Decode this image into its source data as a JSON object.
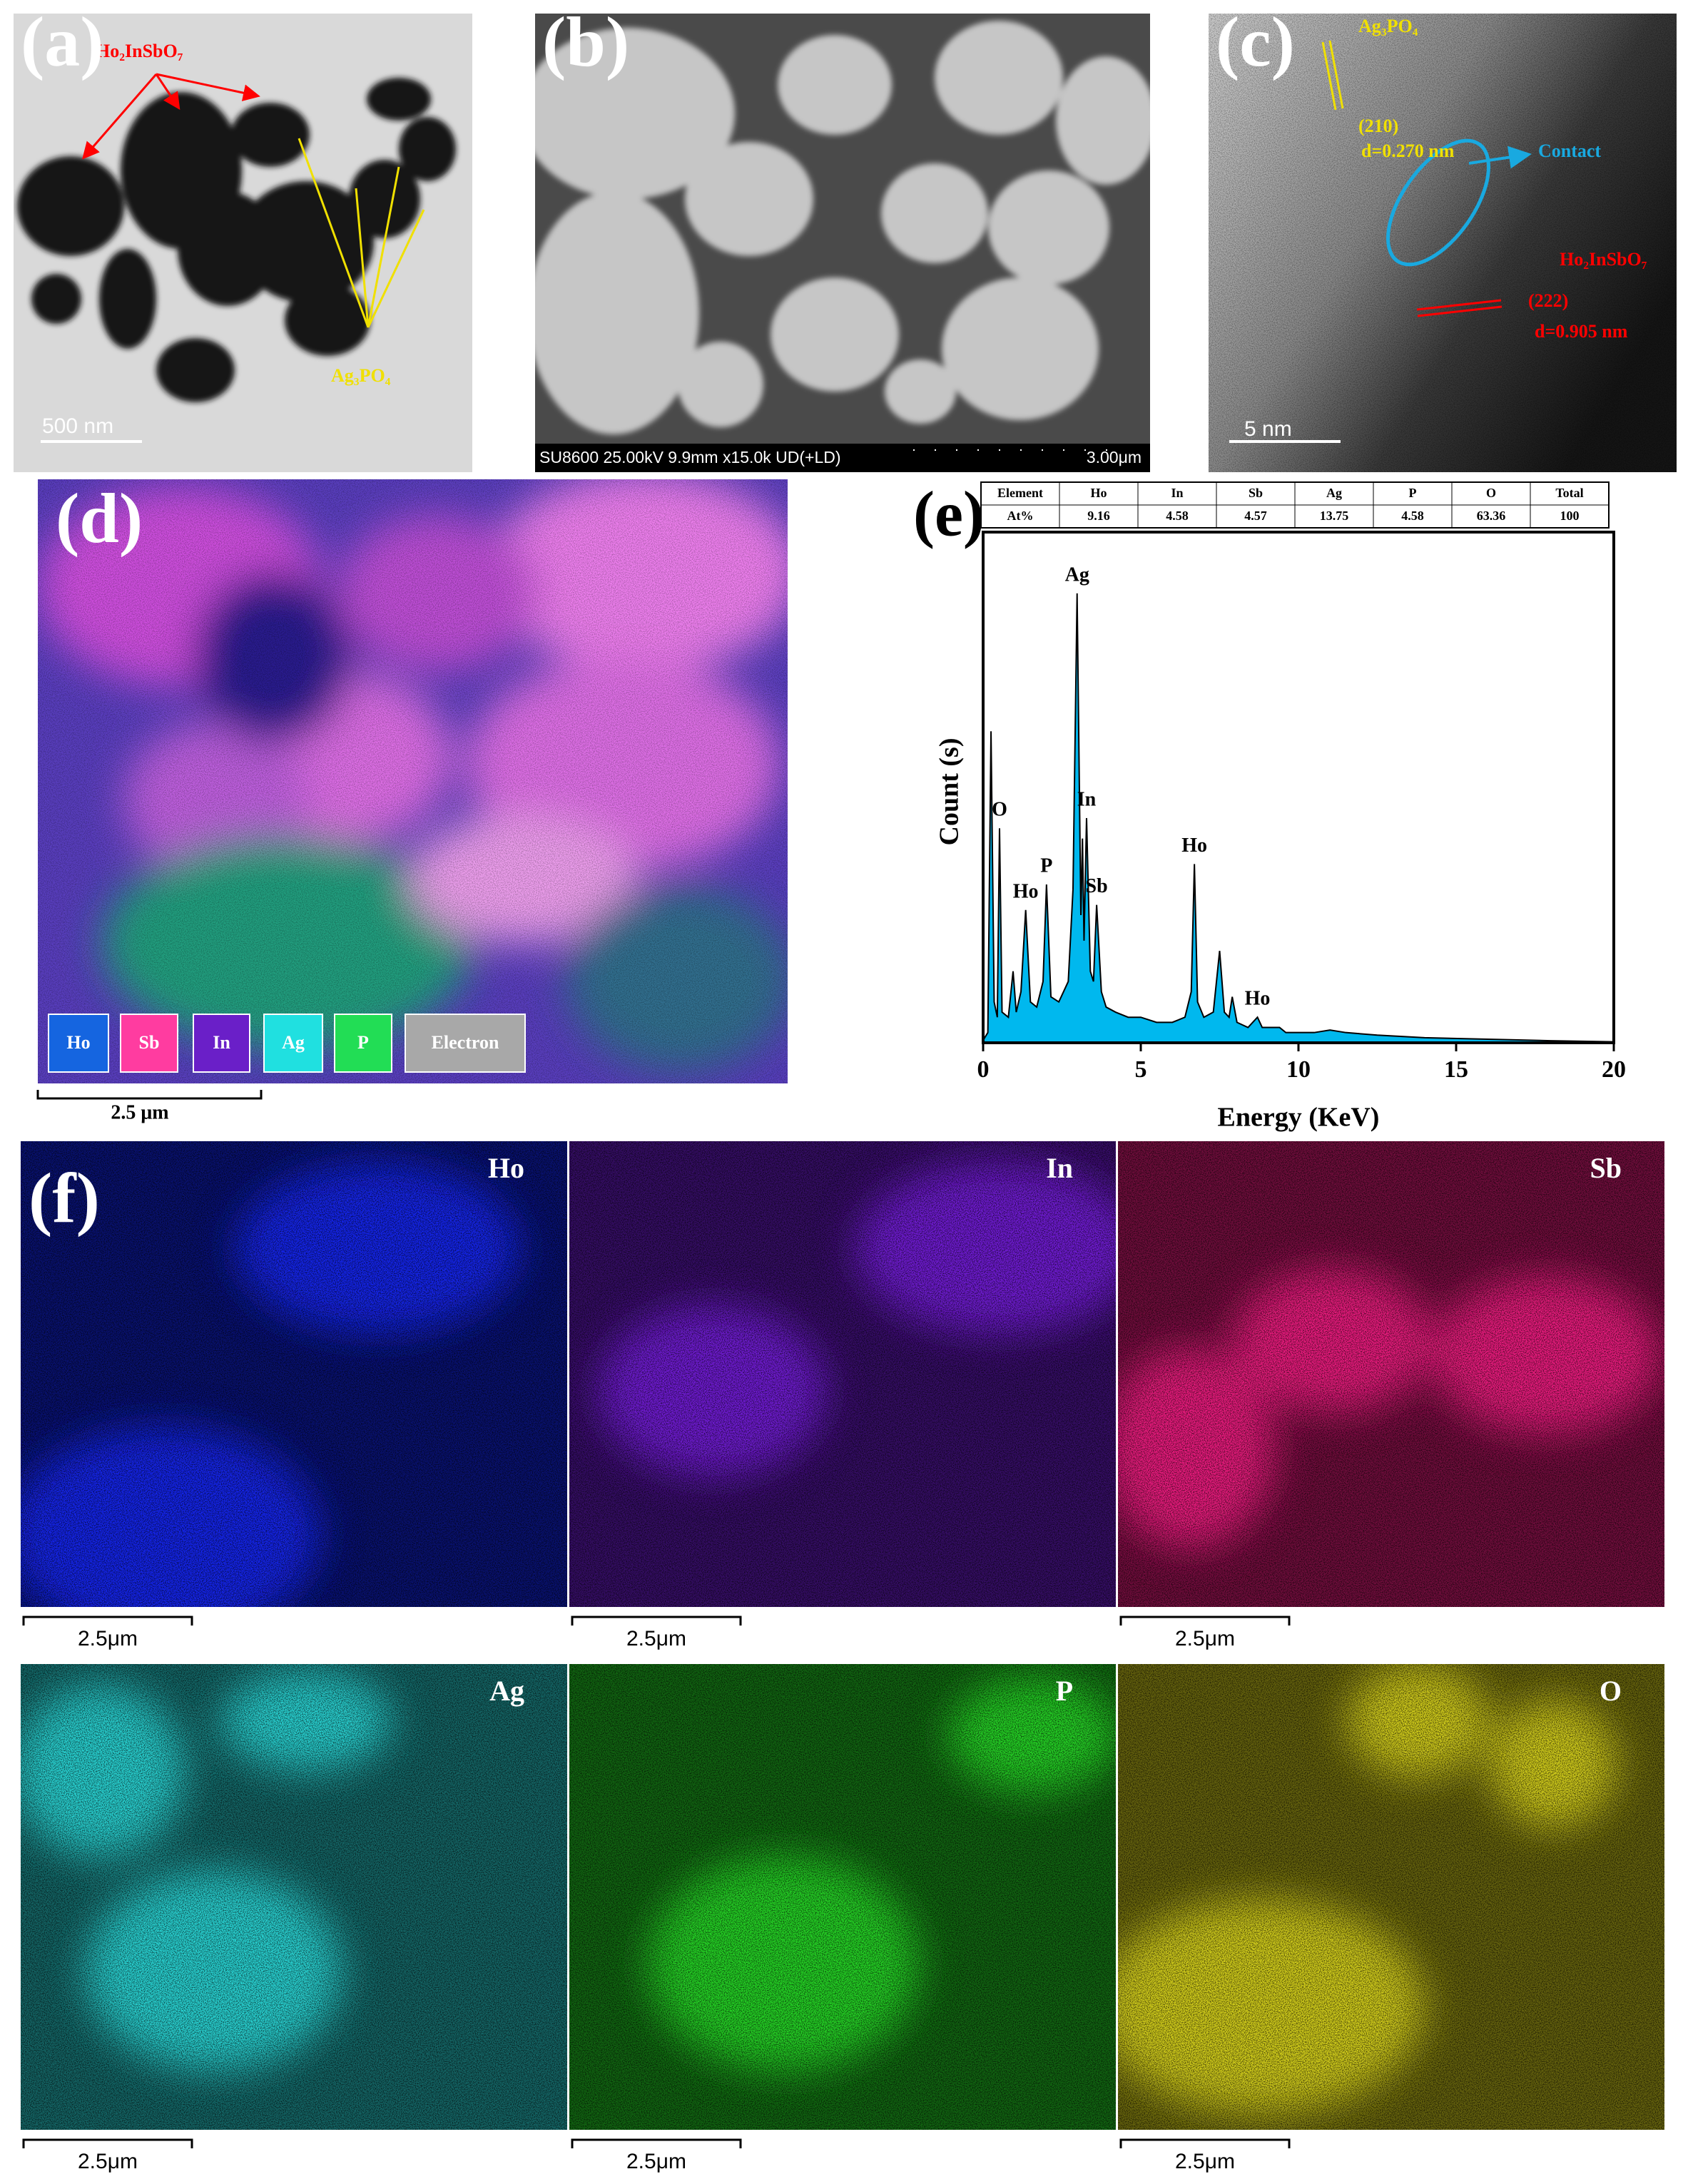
{
  "panels": {
    "a": {
      "label": "(a)",
      "phase_1": "Ho₂InSbO₇",
      "phase_2": "Ag₃PO₄",
      "scale_bar": "500 nm"
    },
    "b": {
      "label": "(b)",
      "info": "SU8600 25.00kV 9.9mm x15.0k UD(+LD)",
      "scale_bar": "3.00μm"
    },
    "c": {
      "label": "(c)",
      "phase_1": "Ag₃PO₄",
      "plane_1": "(210)",
      "spacing_1": "d=0.270 nm",
      "contact": "Contact",
      "phase_2": "Ho₂InSbO₇",
      "plane_2": "(222)",
      "spacing_2": "d=0.905 nm",
      "scale_bar": "5 nm"
    },
    "d": {
      "label": "(d)",
      "scale_bar": "2.5 μm",
      "legend": [
        {
          "name": "Ho",
          "color": "#1565e0"
        },
        {
          "name": "Sb",
          "color": "#ff3ca0"
        },
        {
          "name": "In",
          "color": "#6a1fc8"
        },
        {
          "name": "Ag",
          "color": "#20e0e0"
        },
        {
          "name": "P",
          "color": "#22dd55"
        },
        {
          "name": "Electron",
          "color": "#a8a8a8"
        }
      ]
    },
    "e": {
      "label": "(e)",
      "table": {
        "header": [
          "Element",
          "Ho",
          "In",
          "Sb",
          "Ag",
          "P",
          "O",
          "Total"
        ],
        "rows": [
          [
            "At%",
            9.16,
            4.58,
            4.57,
            13.75,
            4.58,
            63.36,
            100
          ]
        ]
      }
    },
    "f": {
      "label": "(f)",
      "maps": [
        {
          "name": "Ho",
          "color": "#1428ff",
          "scale_bar": "2.5μm"
        },
        {
          "name": "In",
          "color": "#7a1fe6",
          "scale_bar": "2.5μm"
        },
        {
          "name": "Sb",
          "color": "#ff1f8a",
          "scale_bar": "2.5μm"
        },
        {
          "name": "Ag",
          "color": "#2ee6e6",
          "scale_bar": "2.5μm"
        },
        {
          "name": "P",
          "color": "#28e628",
          "scale_bar": "2.5μm"
        },
        {
          "name": "O",
          "color": "#e6e020",
          "scale_bar": "2.5μm"
        }
      ]
    }
  },
  "chart_data": {
    "type": "area",
    "x_label": "Energy (KeV)",
    "y_label": "Count (s)",
    "color": "#00b8ee",
    "xlim": [
      0,
      20
    ],
    "xticks": [
      0,
      5,
      10,
      15,
      20
    ],
    "ylim": [
      0,
      100
    ],
    "x": [
      0,
      0.15,
      0.25,
      0.35,
      0.45,
      0.52,
      0.6,
      0.8,
      0.95,
      1.05,
      1.2,
      1.35,
      1.5,
      1.7,
      1.9,
      2.01,
      2.15,
      2.4,
      2.7,
      2.85,
      2.98,
      3.1,
      3.15,
      3.2,
      3.28,
      3.4,
      3.5,
      3.6,
      3.75,
      3.9,
      4.2,
      4.6,
      5.0,
      5.5,
      6.0,
      6.4,
      6.6,
      6.7,
      6.8,
      7.0,
      7.3,
      7.5,
      7.65,
      7.8,
      7.9,
      8.05,
      8.4,
      8.7,
      8.85,
      9.1,
      9.4,
      9.6,
      10.0,
      10.5,
      11.0,
      11.5,
      12.5,
      14,
      16,
      18,
      20
    ],
    "values": [
      0.5,
      2,
      61,
      8,
      5,
      42,
      6,
      5,
      14,
      6,
      10,
      26,
      8,
      7,
      12,
      31,
      9,
      8,
      12,
      30,
      88,
      25,
      40,
      20,
      44,
      14,
      12,
      27,
      10,
      7,
      6,
      5,
      5,
      4,
      4,
      5,
      10,
      35,
      8,
      5,
      6,
      18,
      6,
      5,
      9,
      4,
      3,
      5,
      3,
      3,
      3,
      2,
      2,
      2,
      2.5,
      2,
      1.5,
      1,
      0.7,
      0.4,
      0.2
    ],
    "annotations": [
      {
        "text": "O",
        "x": 0.52
      },
      {
        "text": "Ho",
        "x": 1.35
      },
      {
        "text": "P",
        "x": 2.01
      },
      {
        "text": "Ag",
        "x": 2.98
      },
      {
        "text": "In",
        "x": 3.28
      },
      {
        "text": "Sb",
        "x": 3.6
      },
      {
        "text": "Ho",
        "x": 6.7
      },
      {
        "text": "Ho",
        "x": 8.7
      }
    ]
  }
}
